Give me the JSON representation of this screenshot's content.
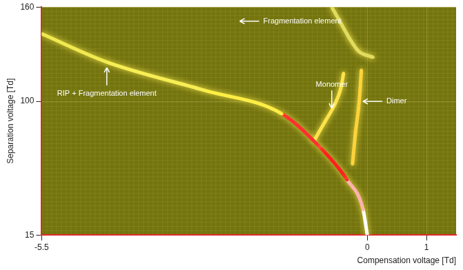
{
  "chart_data": {
    "type": "line",
    "x_label": "Compensation voltage [Td]",
    "y_label": "Separation voltage [Td]",
    "xlim": [
      -5.5,
      1.5
    ],
    "xticks": [
      -5.5,
      0,
      1
    ],
    "ylim": [
      15,
      160
    ],
    "yticks": [
      15,
      100,
      160
    ],
    "grid": true,
    "series": [
      {
        "color": "#f2ec50",
        "x": [
          -5.5,
          -4.4,
          -2.75,
          -1.44,
          -0.78,
          -0.34,
          -0.07,
          0.0
        ],
        "values": [
          143,
          125,
          107,
          92,
          70,
          50,
          31,
          15
        ],
        "colors": [
          "#e6e650",
          "#f0ea50",
          "#f7ee55",
          "#ffee44",
          "#ff3030",
          "#ff2020",
          "#ffb0b0",
          "#ffffff"
        ]
      },
      {
        "color": "#ffe24a",
        "x": [
          -0.9,
          -0.7,
          -0.55,
          -0.45,
          -0.4
        ],
        "values": [
          75,
          88,
          98,
          108,
          118
        ]
      },
      {
        "color": "#ffd23a",
        "x": [
          -0.25,
          -0.2,
          -0.15,
          -0.12,
          -0.1
        ],
        "values": [
          60,
          80,
          95,
          108,
          120
        ]
      },
      {
        "color": "#e0dc60",
        "x": [
          -0.6,
          -0.45,
          -0.3,
          -0.15,
          0.1
        ],
        "values": [
          160,
          150,
          140,
          132,
          128
        ]
      }
    ],
    "annotations": [
      {
        "text": "Fragmentation element",
        "x": -2.2,
        "y": 151
      },
      {
        "text": "RIP + Fragmentation element",
        "x": -4.4,
        "y": 125
      },
      {
        "text": "Monomer",
        "x": -0.6,
        "y": 93
      },
      {
        "text": "Dimer",
        "x": -0.12,
        "y": 100
      }
    ]
  }
}
